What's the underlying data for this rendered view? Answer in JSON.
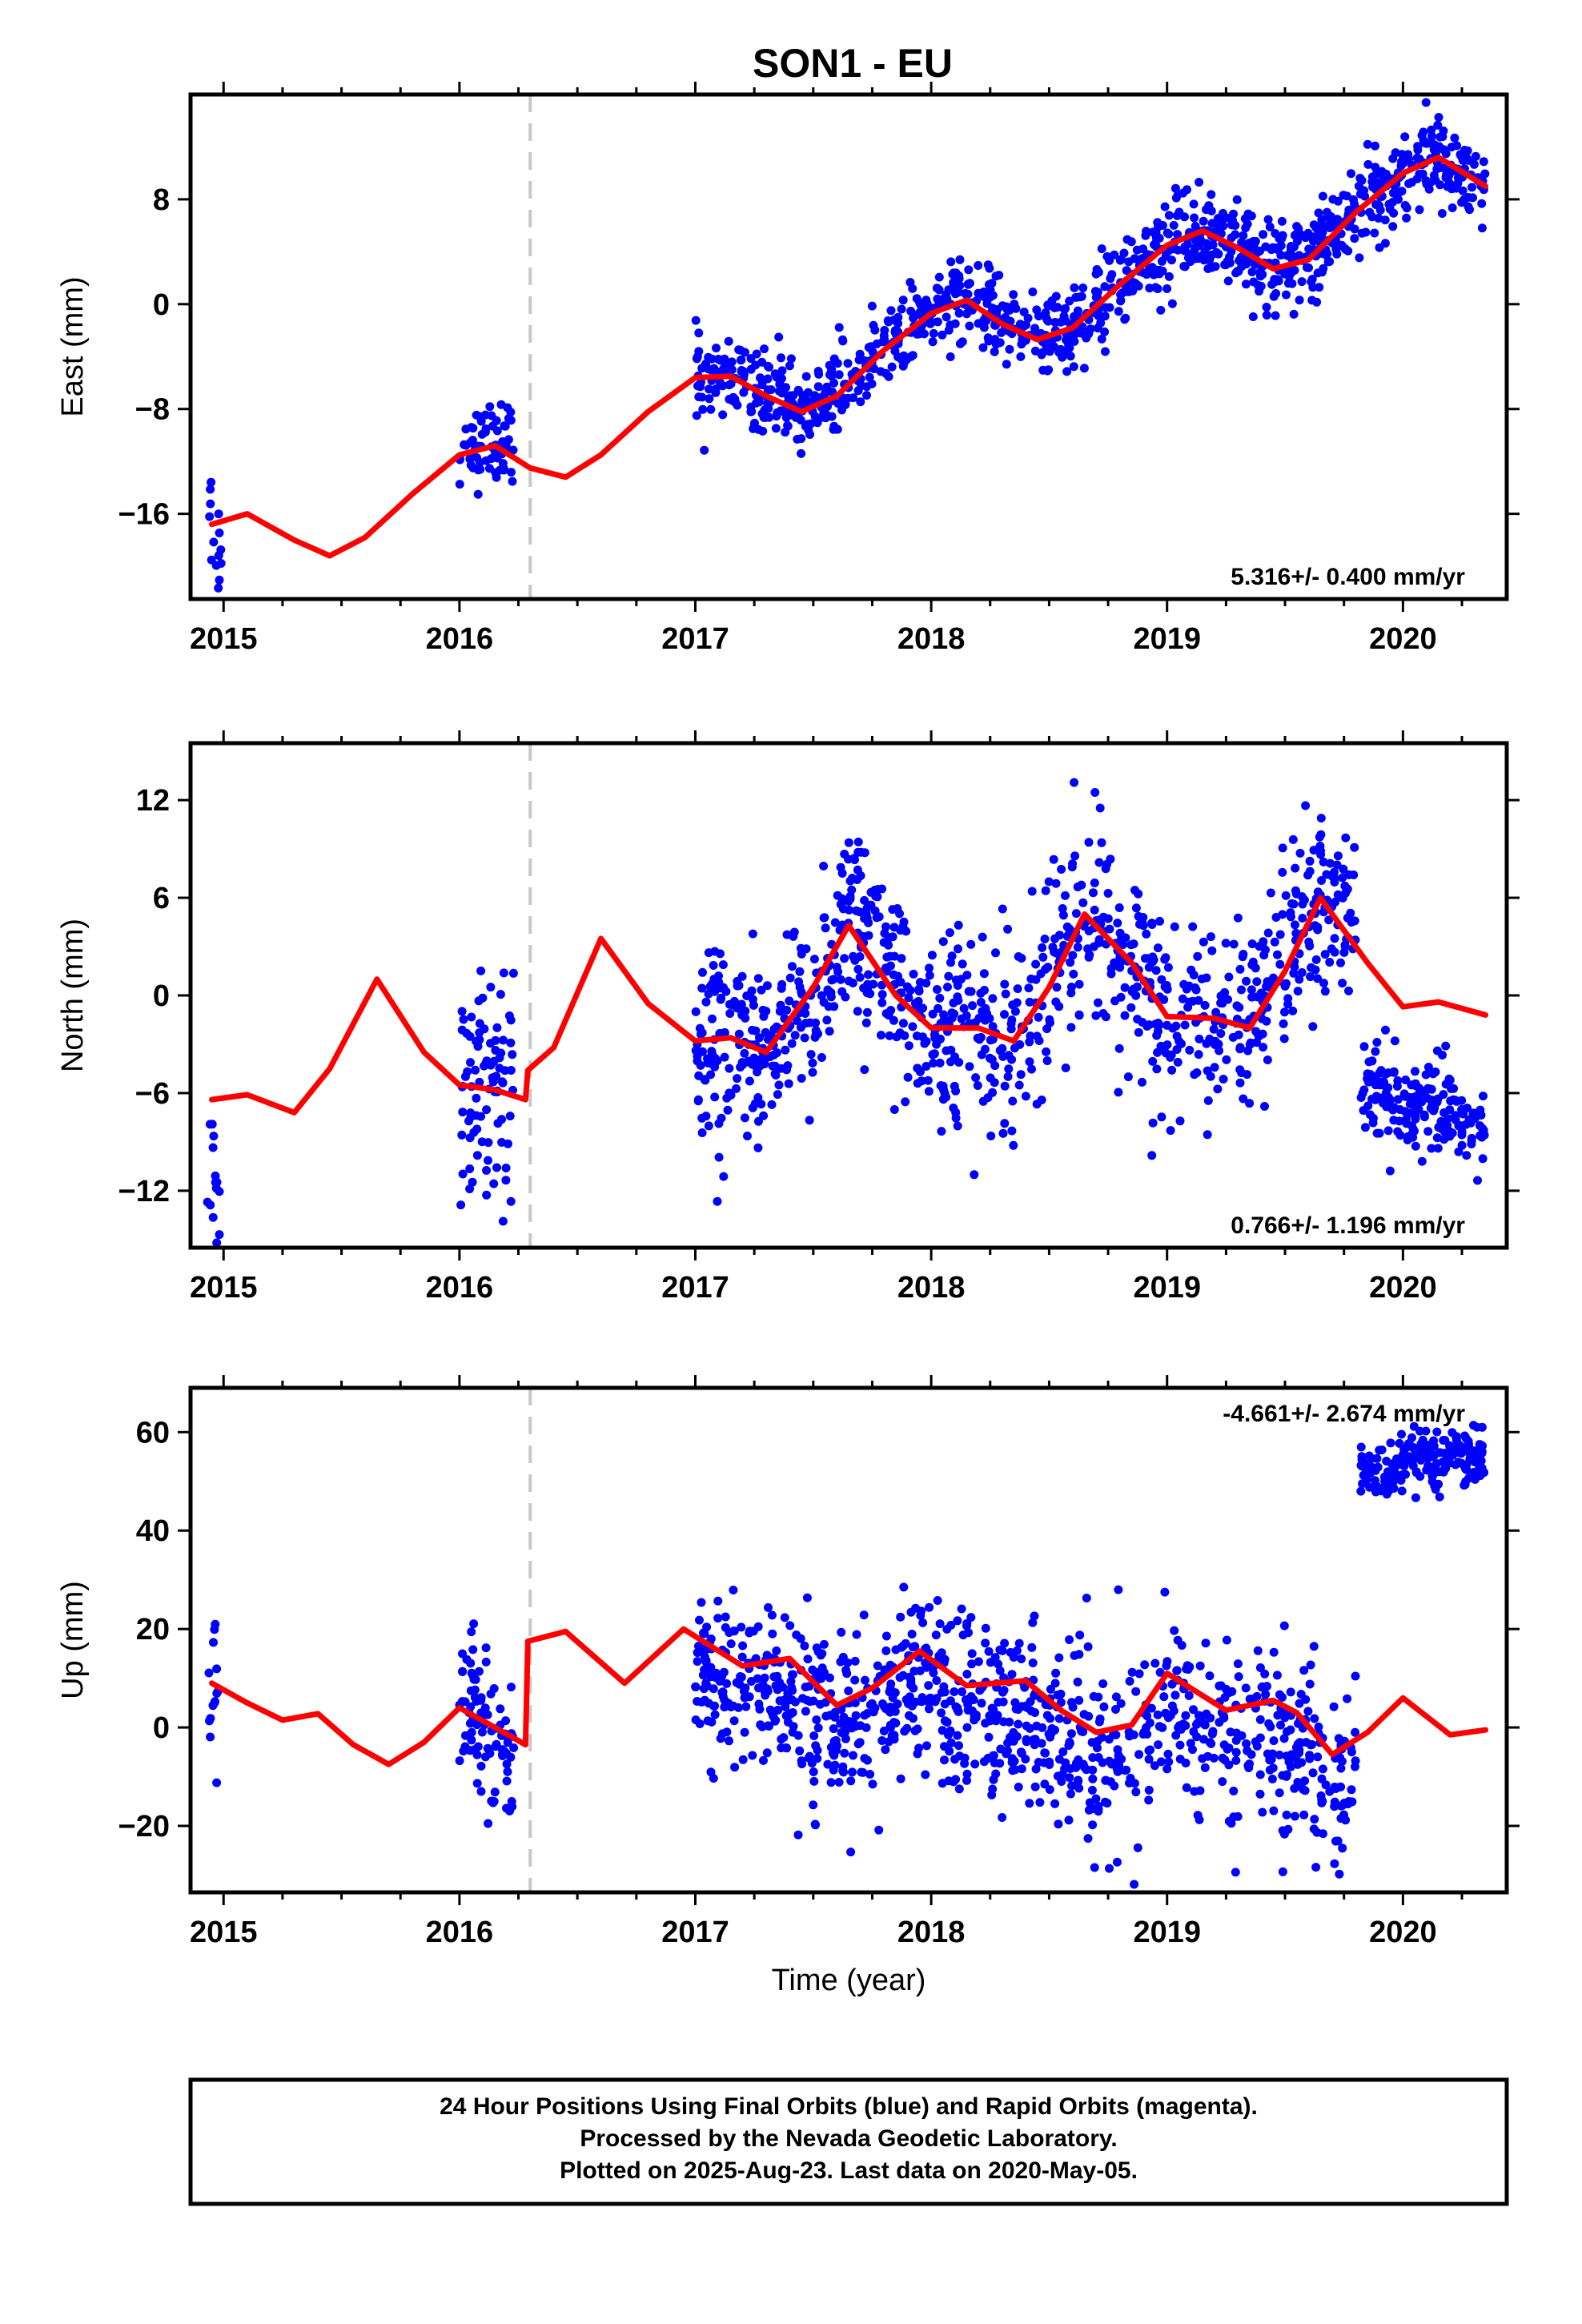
{
  "title": "SON1 - EU",
  "footer": {
    "line1": "24 Hour Positions Using Final Orbits (blue) and Rapid Orbits (magenta).",
    "line2": "Processed by the Nevada Geodetic Laboratory.",
    "line3": "Plotted on 2025-Aug-23. Last data on 2020-May-05."
  },
  "colors": {
    "points": "#0000ff",
    "model": "#ff0000",
    "break_line": "#c8c8c8"
  },
  "chart_data": [
    {
      "type": "scatter",
      "id": "east",
      "ylabel": "East (mm)",
      "xlim": [
        2014.86,
        2020.44
      ],
      "ylim": [
        -22.5,
        16
      ],
      "xticks": [
        2015,
        2016,
        2017,
        2018,
        2019,
        2020
      ],
      "yticks": [
        -16,
        -8,
        0,
        8
      ],
      "ytick_labels": [
        "−16",
        "−8",
        "0",
        "8"
      ],
      "rate": "5.316+/- 0.400 mm/yr",
      "rate_position": "bottom-right",
      "break_epoch": 2016.3,
      "grid": false,
      "model": {
        "x": [
          2014.95,
          2015.1,
          2015.3,
          2015.45,
          2015.6,
          2015.8,
          2016.0,
          2016.15,
          2016.3,
          2016.45,
          2016.6,
          2016.8,
          2017.0,
          2017.15,
          2017.3,
          2017.45,
          2017.6,
          2017.8,
          2018.0,
          2018.15,
          2018.3,
          2018.45,
          2018.6,
          2018.8,
          2019.0,
          2019.15,
          2019.3,
          2019.45,
          2019.6,
          2019.8,
          2020.0,
          2020.15,
          2020.35
        ],
        "y": [
          -16.8,
          -16.0,
          -18.0,
          -19.2,
          -17.8,
          -14.5,
          -11.5,
          -10.8,
          -12.5,
          -13.2,
          -11.5,
          -8.2,
          -5.6,
          -5.5,
          -7.0,
          -8.2,
          -7.0,
          -3.5,
          -0.7,
          0.3,
          -1.5,
          -2.7,
          -1.8,
          1.5,
          4.5,
          5.6,
          4.3,
          2.7,
          3.4,
          7.0,
          10.0,
          11.2,
          9.0
        ]
      },
      "clusters": [
        {
          "x_start": 2014.93,
          "x_end": 2014.99,
          "points": 14,
          "center": [
            -15.3,
            -18.9
          ],
          "spread": 2.2
        },
        {
          "x_start": 2016.0,
          "x_end": 2016.23,
          "points": 70,
          "center": [
            -11.3,
            -10.1
          ],
          "spread": 1.5
        },
        {
          "x_start": 2017.0,
          "x_end": 2020.35,
          "points": 1120,
          "center": "model",
          "spread": 1.6
        }
      ]
    },
    {
      "type": "scatter",
      "id": "north",
      "ylabel": "North (mm)",
      "xlim": [
        2014.86,
        2020.44
      ],
      "ylim": [
        -15.5,
        15.5
      ],
      "xticks": [
        2015,
        2016,
        2017,
        2018,
        2019,
        2020
      ],
      "yticks": [
        -12,
        -6,
        0,
        6,
        12
      ],
      "ytick_labels": [
        "−12",
        "−6",
        "0",
        "6",
        "12"
      ],
      "rate": "0.766+/- 1.196 mm/yr",
      "rate_position": "bottom-right",
      "break_epoch": 2016.3,
      "grid": false,
      "model": {
        "x": [
          2014.95,
          2015.1,
          2015.3,
          2015.45,
          2015.65,
          2015.85,
          2016.0,
          2016.15,
          2016.28,
          2016.29,
          2016.4,
          2016.6,
          2016.8,
          2017.0,
          2017.15,
          2017.3,
          2017.5,
          2017.65,
          2017.85,
          2018.0,
          2018.2,
          2018.35,
          2018.5,
          2018.65,
          2018.85,
          2019.0,
          2019.2,
          2019.35,
          2019.5,
          2019.65,
          2019.85,
          2020.0,
          2020.15,
          2020.35
        ],
        "y": [
          -6.4,
          -6.1,
          -7.2,
          -4.5,
          1.0,
          -3.5,
          -5.5,
          -5.8,
          -6.4,
          -4.6,
          -3.2,
          3.5,
          -0.5,
          -2.8,
          -2.6,
          -3.5,
          0.5,
          4.3,
          0.0,
          -2.0,
          -2.0,
          -2.8,
          0.5,
          5.0,
          2.0,
          -1.3,
          -1.4,
          -2.0,
          1.5,
          6.0,
          2.0,
          -0.7,
          -0.4,
          -1.2
        ]
      },
      "clusters": [
        {
          "x_start": 2014.93,
          "x_end": 2014.99,
          "points": 14,
          "center": [
            -8.5,
            -12.0
          ],
          "spread": 3.5
        },
        {
          "x_start": 2016.0,
          "x_end": 2016.23,
          "points": 90,
          "center": [
            -5.5,
            -5.5
          ],
          "spread": 3.2
        },
        {
          "x_start": 2017.0,
          "x_end": 2019.8,
          "points": 1000,
          "center": "model",
          "spread": 3.0
        },
        {
          "x_start": 2019.82,
          "x_end": 2020.35,
          "points": 190,
          "center": [
            -5.5,
            -7.8
          ],
          "spread": 1.4
        }
      ]
    },
    {
      "type": "scatter",
      "id": "up",
      "ylabel": "Up (mm)",
      "xlim": [
        2014.86,
        2020.44
      ],
      "ylim": [
        -33.5,
        69
      ],
      "xticks": [
        2015,
        2016,
        2017,
        2018,
        2019,
        2020
      ],
      "yticks": [
        -20,
        0,
        20,
        40,
        60
      ],
      "ytick_labels": [
        "−20",
        "0",
        "20",
        "40",
        "60"
      ],
      "xlabel": "Time (year)",
      "rate": "-4.661+/- 2.674 mm/yr",
      "rate_position": "top-right",
      "break_epoch": 2016.3,
      "grid": false,
      "model": {
        "x": [
          2014.95,
          2015.1,
          2015.25,
          2015.4,
          2015.55,
          2015.7,
          2015.85,
          2016.0,
          2016.15,
          2016.28,
          2016.29,
          2016.45,
          2016.7,
          2016.95,
          2017.2,
          2017.4,
          2017.6,
          2017.75,
          2017.95,
          2018.15,
          2018.4,
          2018.55,
          2018.7,
          2018.85,
          2019.0,
          2019.25,
          2019.45,
          2019.55,
          2019.7,
          2019.85,
          2020.0,
          2020.2,
          2020.35
        ],
        "y": [
          9.0,
          5.0,
          1.5,
          2.8,
          -3.5,
          -7.5,
          -3.0,
          4.0,
          0.0,
          -3.5,
          17.5,
          19.5,
          9.0,
          20.0,
          12.5,
          14.0,
          4.5,
          8.0,
          15.5,
          8.5,
          9.5,
          3.5,
          -1.0,
          0.5,
          11.0,
          3.5,
          5.5,
          3.0,
          -5.5,
          -1.0,
          6.0,
          -1.5,
          -0.5
        ]
      },
      "clusters": [
        {
          "x_start": 2014.93,
          "x_end": 2014.99,
          "points": 14,
          "center": [
            10.0,
            6.0
          ],
          "spread": 8.0
        },
        {
          "x_start": 2016.0,
          "x_end": 2016.23,
          "points": 90,
          "center": [
            5.0,
            -6.0
          ],
          "spread": 9.0
        },
        {
          "x_start": 2017.0,
          "x_end": 2019.8,
          "points": 1000,
          "center": "model-shift",
          "spread": 9.0
        },
        {
          "x_start": 2019.82,
          "x_end": 2020.35,
          "points": 190,
          "center": [
            52.0,
            56.0
          ],
          "spread": 3.0
        }
      ]
    }
  ]
}
